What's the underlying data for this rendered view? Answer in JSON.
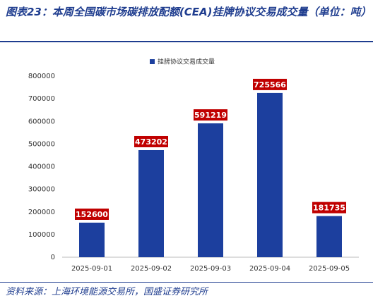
{
  "chart_data": {
    "type": "bar",
    "title": "图表23：本周全国碳市场碳排放配额(CEA)挂牌协议交易成交量（单位：吨）",
    "source": "资料来源：上海环境能源交易所，国盛证券研究所",
    "categories": [
      "2025-09-01",
      "2025-09-02",
      "2025-09-03",
      "2025-09-04",
      "2025-09-05"
    ],
    "series": [
      {
        "name": "挂牌协议交易成交量",
        "color": "#1c3f9e",
        "values": [
          152600,
          473202,
          591219,
          725566,
          181735
        ]
      }
    ],
    "label_color": "#c00000",
    "ylim": [
      0,
      800000
    ],
    "yticks": [
      0,
      100000,
      200000,
      300000,
      400000,
      500000,
      600000,
      700000,
      800000
    ],
    "grid": false
  }
}
